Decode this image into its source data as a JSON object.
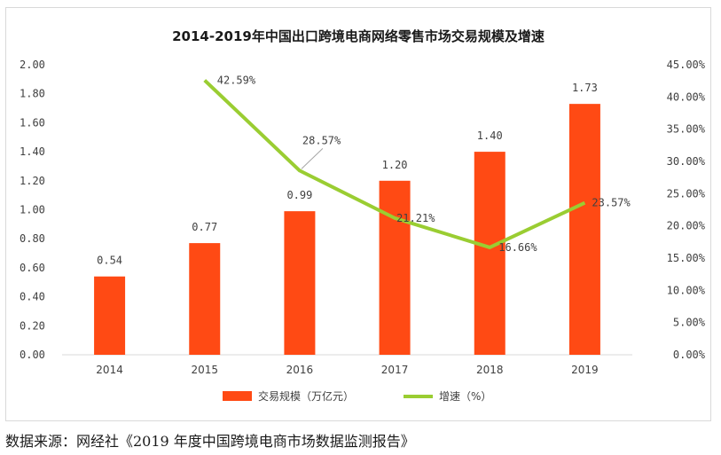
{
  "chart_data": {
    "type": "bar",
    "title": "2014-2019年中国出口跨境电商网络零售市场交易规模及增速",
    "categories": [
      "2014",
      "2015",
      "2016",
      "2017",
      "2018",
      "2019"
    ],
    "series": [
      {
        "name": "交易规模（万亿元）",
        "type": "bar",
        "axis": "left",
        "color": "#ff4a14",
        "values": [
          0.54,
          0.77,
          0.99,
          1.2,
          1.4,
          1.73
        ],
        "labels": [
          "0.54",
          "0.77",
          "0.99",
          "1.20",
          "1.40",
          "1.73"
        ]
      },
      {
        "name": "增速（%）",
        "type": "line",
        "axis": "right",
        "color": "#9acd32",
        "values": [
          null,
          42.59,
          28.57,
          21.21,
          16.66,
          23.57
        ],
        "labels": [
          "",
          "42.59%",
          "28.57%",
          "21.21%",
          "16.66%",
          "23.57%"
        ]
      }
    ],
    "y_left": {
      "ylim": [
        0,
        2.0
      ],
      "ticks": [
        "0.00",
        "0.20",
        "0.40",
        "0.60",
        "0.80",
        "1.00",
        "1.20",
        "1.40",
        "1.60",
        "1.80",
        "2.00"
      ]
    },
    "y_right": {
      "ylim": [
        0,
        45
      ],
      "ticks": [
        "0.00%",
        "5.00%",
        "10.00%",
        "15.00%",
        "20.00%",
        "25.00%",
        "30.00%",
        "35.00%",
        "40.00%",
        "45.00%"
      ]
    },
    "grid": false,
    "legend": "bottom"
  },
  "source": "数据来源：网经社《2019 年度中国跨境电商市场数据监测报告》"
}
